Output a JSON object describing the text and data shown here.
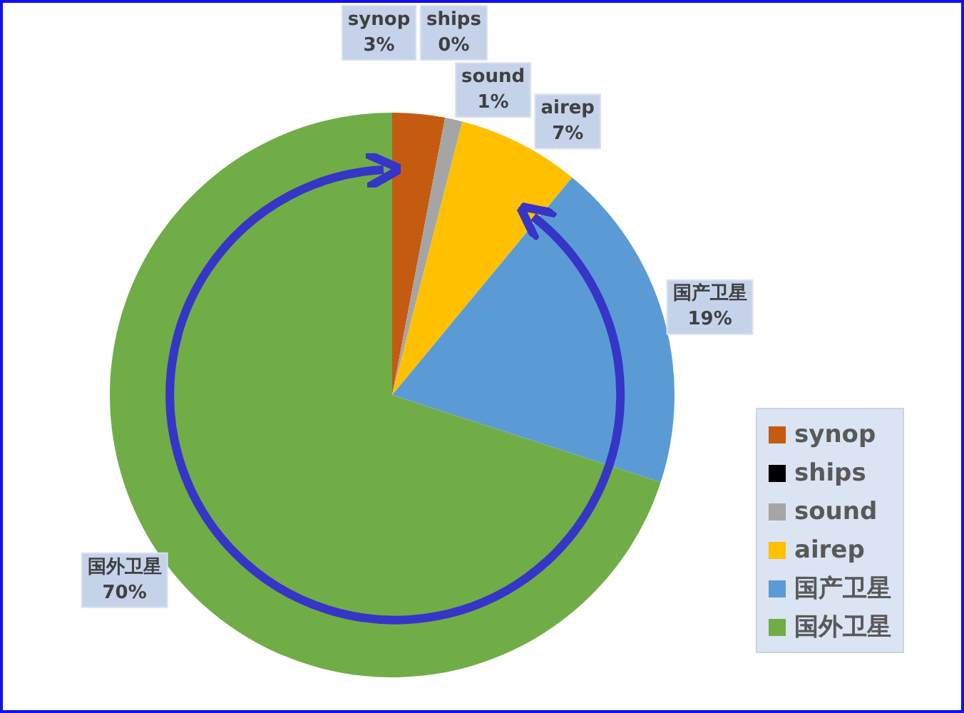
{
  "chart_data": {
    "type": "pie",
    "categories": [
      "synop",
      "ships",
      "sound",
      "airep",
      "国产卫星",
      "国外卫星"
    ],
    "values": [
      3,
      0,
      1,
      7,
      19,
      70
    ],
    "colors": [
      "#c55a11",
      "#000000",
      "#a5a5a5",
      "#ffc000",
      "#5b9bd5",
      "#70ad47"
    ],
    "value_labels": [
      "3%",
      "0%",
      "1%",
      "7%",
      "19%",
      "70%"
    ],
    "legend": "bottom right"
  }
}
